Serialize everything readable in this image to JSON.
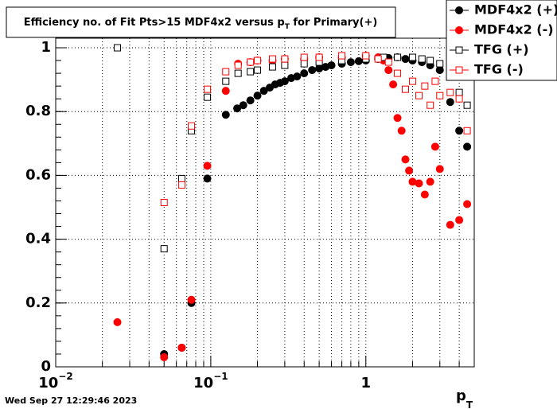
{
  "chart_data": {
    "type": "scatter",
    "title_parts": [
      "Efficiency no. of Fit Pts>15 MDF4x2 versus p",
      "T",
      " for Primary(+)"
    ],
    "xlabel_parts": [
      "p",
      "T"
    ],
    "timestamp": "Wed Sep 27 12:29:46 2023",
    "xscale": "log",
    "xlim": [
      0.01,
      5
    ],
    "ylim": [
      0,
      1.03
    ],
    "xticks": [
      {
        "value": 0.01,
        "label": "10",
        "sup": "−2"
      },
      {
        "value": 0.1,
        "label": "10",
        "sup": "−1"
      },
      1
    ],
    "xminorticks": [
      0.02,
      0.03,
      0.04,
      0.05,
      0.06,
      0.07,
      0.08,
      0.09,
      0.2,
      0.3,
      0.4,
      0.5,
      0.6,
      0.7,
      0.8,
      0.9,
      2,
      3,
      4
    ],
    "yticks": [
      0,
      {
        "value": 0.2,
        "label": "0.2"
      },
      {
        "value": 0.4,
        "label": "0.4"
      },
      {
        "value": 0.6,
        "label": "0.6"
      },
      {
        "value": 0.8,
        "label": "0.8"
      },
      1
    ],
    "grid": true,
    "legend": "top-right",
    "series": [
      {
        "name": "MDF4x2 (+)",
        "color": "#000000",
        "marker": "circle",
        "filled": true,
        "x": [
          0.05,
          0.065,
          0.075,
          0.095,
          0.125,
          0.148,
          0.162,
          0.18,
          0.2,
          0.22,
          0.24,
          0.26,
          0.28,
          0.3,
          0.33,
          0.36,
          0.4,
          0.45,
          0.5,
          0.55,
          0.6,
          0.7,
          0.8,
          0.9,
          1.0,
          1.2,
          1.4,
          1.6,
          1.8,
          2.0,
          2.3,
          2.6,
          3.0,
          3.5,
          4.0,
          4.5
        ],
        "values": [
          0.04,
          0.06,
          0.2,
          0.59,
          0.79,
          0.81,
          0.82,
          0.835,
          0.85,
          0.865,
          0.875,
          0.885,
          0.89,
          0.895,
          0.905,
          0.91,
          0.92,
          0.93,
          0.935,
          0.94,
          0.945,
          0.95,
          0.955,
          0.958,
          0.96,
          0.965,
          0.968,
          0.97,
          0.965,
          0.96,
          0.955,
          0.945,
          0.93,
          0.83,
          0.74,
          0.69
        ]
      },
      {
        "name": "MDF4x2 (-)",
        "color": "#ff0000",
        "marker": "circle",
        "filled": true,
        "x": [
          0.025,
          0.05,
          0.065,
          0.075,
          0.095,
          0.125,
          0.15,
          0.18,
          0.2,
          0.25,
          0.3,
          0.4,
          0.5,
          0.7,
          1.0,
          1.2,
          1.3,
          1.4,
          1.5,
          1.6,
          1.7,
          1.8,
          1.9,
          2.0,
          2.2,
          2.4,
          2.6,
          2.8,
          3.0,
          3.5,
          4.0,
          4.5
        ],
        "values": [
          0.14,
          0.03,
          0.06,
          0.21,
          0.63,
          0.865,
          0.95,
          0.955,
          0.96,
          0.96,
          0.965,
          0.965,
          0.97,
          0.97,
          0.975,
          0.97,
          0.96,
          0.93,
          0.885,
          0.78,
          0.74,
          0.65,
          0.615,
          0.58,
          0.575,
          0.54,
          0.58,
          0.69,
          0.62,
          0.445,
          0.46,
          0.51
        ]
      },
      {
        "name": "TFG (+)",
        "color": "#000000",
        "marker": "square",
        "filled": false,
        "x": [
          0.025,
          0.05,
          0.065,
          0.075,
          0.095,
          0.125,
          0.15,
          0.18,
          0.2,
          0.25,
          0.3,
          0.4,
          0.5,
          0.7,
          1.0,
          1.3,
          1.6,
          2.0,
          2.3,
          2.6,
          3.0,
          3.5,
          4.0,
          4.5
        ],
        "values": [
          1.0,
          0.37,
          0.59,
          0.74,
          0.845,
          0.895,
          0.92,
          0.925,
          0.93,
          0.94,
          0.945,
          0.95,
          0.955,
          0.96,
          0.965,
          0.97,
          0.97,
          0.97,
          0.965,
          0.96,
          0.95,
          0.93,
          0.86,
          0.82
        ]
      },
      {
        "name": "TFG (-)",
        "color": "#ff0000",
        "marker": "square",
        "filled": false,
        "x": [
          0.05,
          0.065,
          0.075,
          0.095,
          0.125,
          0.15,
          0.18,
          0.2,
          0.25,
          0.3,
          0.4,
          0.5,
          0.7,
          1.0,
          1.2,
          1.4,
          1.6,
          1.8,
          2.0,
          2.2,
          2.4,
          2.6,
          2.8,
          3.0,
          3.5,
          4.0,
          4.5
        ],
        "values": [
          0.515,
          0.57,
          0.755,
          0.87,
          0.925,
          0.945,
          0.955,
          0.96,
          0.965,
          0.965,
          0.97,
          0.97,
          0.975,
          0.975,
          0.965,
          0.955,
          0.92,
          0.87,
          0.895,
          0.85,
          0.88,
          0.82,
          0.895,
          0.85,
          0.86,
          0.84,
          0.74
        ]
      }
    ]
  }
}
